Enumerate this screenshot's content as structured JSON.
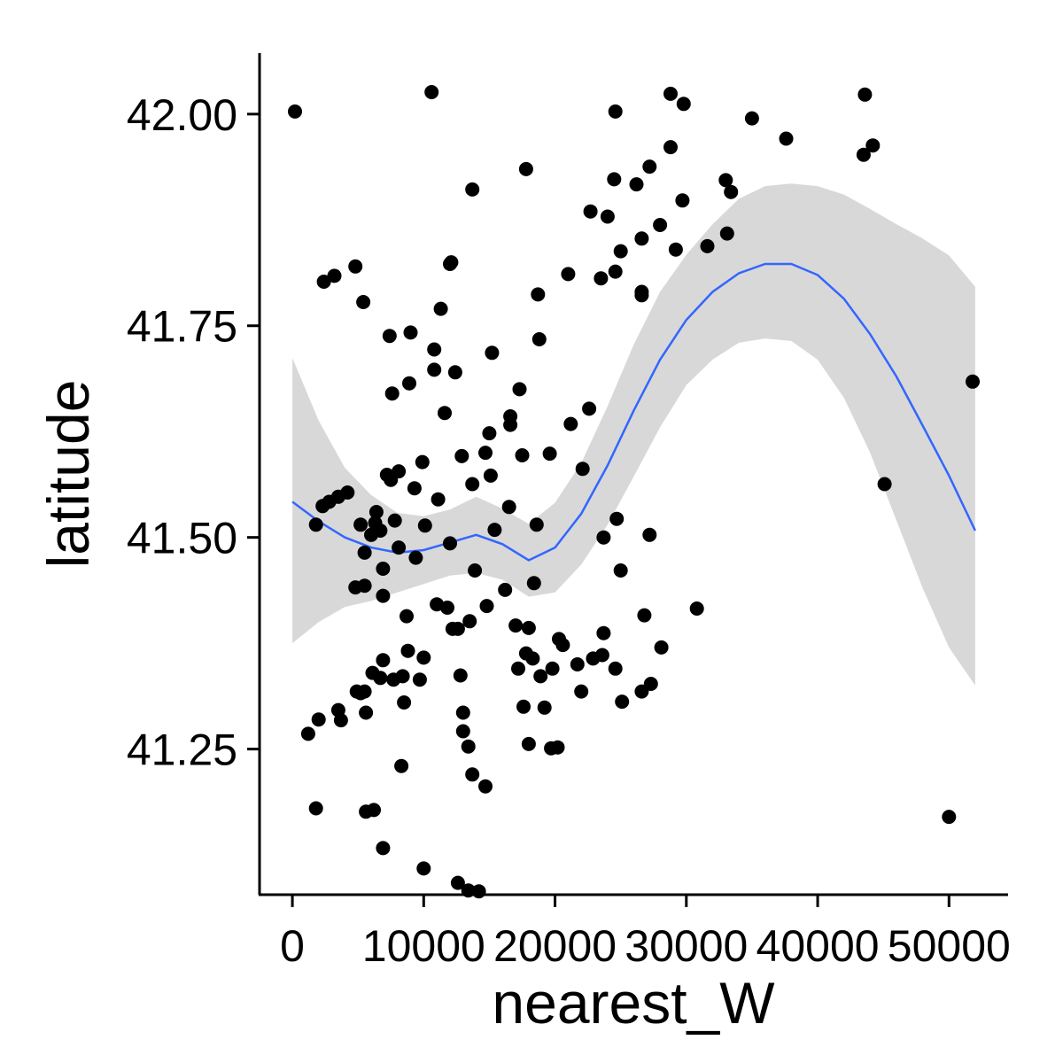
{
  "chart_data": {
    "type": "scatter",
    "title": "",
    "xlabel": "nearest_W",
    "ylabel": "latitude",
    "xlim": [
      -2500,
      54500
    ],
    "ylim": [
      41.078,
      42.072
    ],
    "xticks": [
      0,
      10000,
      20000,
      30000,
      40000,
      50000
    ],
    "xtick_labels": [
      "0",
      "10000",
      "20000",
      "30000",
      "40000",
      "50000"
    ],
    "yticks": [
      41.25,
      41.5,
      41.75,
      42.0
    ],
    "ytick_labels": [
      "41.25",
      "41.50",
      "41.75",
      "42.00"
    ],
    "grid": false,
    "legend": "none",
    "colors": {
      "points": "#000000",
      "smooth": "#3366FF",
      "ci_band": "#D6D6D6"
    },
    "points": [
      [
        200,
        42.003
      ],
      [
        10600,
        42.026
      ],
      [
        24600,
        42.003
      ],
      [
        28800,
        42.024
      ],
      [
        29800,
        42.012
      ],
      [
        43600,
        42.023
      ],
      [
        35000,
        41.995
      ],
      [
        37600,
        41.971
      ],
      [
        44200,
        41.963
      ],
      [
        43500,
        41.952
      ],
      [
        28800,
        41.961
      ],
      [
        17800,
        41.935
      ],
      [
        27200,
        41.938
      ],
      [
        24500,
        41.923
      ],
      [
        26200,
        41.917
      ],
      [
        33000,
        41.922
      ],
      [
        33400,
        41.908
      ],
      [
        13700,
        41.911
      ],
      [
        29700,
        41.898
      ],
      [
        22700,
        41.885
      ],
      [
        24000,
        41.879
      ],
      [
        28000,
        41.869
      ],
      [
        33100,
        41.859
      ],
      [
        26600,
        41.853
      ],
      [
        31600,
        41.844
      ],
      [
        29200,
        41.84
      ],
      [
        25000,
        41.838
      ],
      [
        12100,
        41.825
      ],
      [
        12000,
        41.823
      ],
      [
        4800,
        41.82
      ],
      [
        3200,
        41.809
      ],
      [
        2400,
        41.802
      ],
      [
        21000,
        41.811
      ],
      [
        24600,
        41.814
      ],
      [
        23500,
        41.806
      ],
      [
        18700,
        41.787
      ],
      [
        26600,
        41.79
      ],
      [
        26600,
        41.786
      ],
      [
        5400,
        41.778
      ],
      [
        11300,
        41.77
      ],
      [
        7400,
        41.738
      ],
      [
        9000,
        41.742
      ],
      [
        18800,
        41.734
      ],
      [
        10800,
        41.722
      ],
      [
        15200,
        41.718
      ],
      [
        10800,
        41.698
      ],
      [
        12400,
        41.695
      ],
      [
        8900,
        41.682
      ],
      [
        17300,
        41.675
      ],
      [
        7600,
        41.67
      ],
      [
        11600,
        41.647
      ],
      [
        16600,
        41.643
      ],
      [
        22600,
        41.652
      ],
      [
        21200,
        41.634
      ],
      [
        16600,
        41.633
      ],
      [
        15000,
        41.623
      ],
      [
        14700,
        41.6
      ],
      [
        19600,
        41.599
      ],
      [
        17500,
        41.597
      ],
      [
        12900,
        41.596
      ],
      [
        9900,
        41.589
      ],
      [
        22100,
        41.581
      ],
      [
        8100,
        41.578
      ],
      [
        7200,
        41.574
      ],
      [
        15100,
        41.573
      ],
      [
        7500,
        41.568
      ],
      [
        9300,
        41.558
      ],
      [
        4200,
        41.553
      ],
      [
        3500,
        41.548
      ],
      [
        2800,
        41.542
      ],
      [
        2300,
        41.537
      ],
      [
        13700,
        41.563
      ],
      [
        11100,
        41.545
      ],
      [
        16500,
        41.536
      ],
      [
        6400,
        41.53
      ],
      [
        1800,
        41.515
      ],
      [
        5200,
        41.515
      ],
      [
        6300,
        41.517
      ],
      [
        6700,
        41.508
      ],
      [
        6000,
        41.503
      ],
      [
        7800,
        41.52
      ],
      [
        10100,
        41.514
      ],
      [
        15400,
        41.509
      ],
      [
        18600,
        41.515
      ],
      [
        24700,
        41.522
      ],
      [
        27200,
        41.503
      ],
      [
        23700,
        41.5
      ],
      [
        5500,
        41.482
      ],
      [
        8100,
        41.488
      ],
      [
        9400,
        41.476
      ],
      [
        12000,
        41.493
      ],
      [
        6900,
        41.463
      ],
      [
        13900,
        41.461
      ],
      [
        25000,
        41.461
      ],
      [
        5500,
        41.443
      ],
      [
        4800,
        41.441
      ],
      [
        18400,
        41.446
      ],
      [
        16200,
        41.438
      ],
      [
        6900,
        41.431
      ],
      [
        11000,
        41.421
      ],
      [
        11800,
        41.417
      ],
      [
        14800,
        41.419
      ],
      [
        30800,
        41.416
      ],
      [
        8700,
        41.407
      ],
      [
        26800,
        41.408
      ],
      [
        13500,
        41.401
      ],
      [
        17000,
        41.396
      ],
      [
        12200,
        41.392
      ],
      [
        12600,
        41.392
      ],
      [
        18000,
        41.393
      ],
      [
        23700,
        41.387
      ],
      [
        20300,
        41.38
      ],
      [
        20600,
        41.373
      ],
      [
        28100,
        41.37
      ],
      [
        8800,
        41.366
      ],
      [
        10000,
        41.358
      ],
      [
        17800,
        41.363
      ],
      [
        18300,
        41.357
      ],
      [
        23600,
        41.361
      ],
      [
        22900,
        41.357
      ],
      [
        6900,
        41.355
      ],
      [
        6100,
        41.34
      ],
      [
        17200,
        41.345
      ],
      [
        19800,
        41.345
      ],
      [
        21700,
        41.35
      ],
      [
        24600,
        41.345
      ],
      [
        6700,
        41.334
      ],
      [
        7700,
        41.332
      ],
      [
        9700,
        41.332
      ],
      [
        12800,
        41.337
      ],
      [
        18900,
        41.336
      ],
      [
        8400,
        41.336
      ],
      [
        27300,
        41.327
      ],
      [
        22000,
        41.318
      ],
      [
        26600,
        41.318
      ],
      [
        4900,
        41.318
      ],
      [
        5500,
        41.318
      ],
      [
        5200,
        41.316
      ],
      [
        25100,
        41.306
      ],
      [
        8500,
        41.305
      ],
      [
        17600,
        41.3
      ],
      [
        19200,
        41.299
      ],
      [
        3500,
        41.296
      ],
      [
        5600,
        41.293
      ],
      [
        13000,
        41.293
      ],
      [
        2000,
        41.285
      ],
      [
        3700,
        41.284
      ],
      [
        1200,
        41.268
      ],
      [
        13000,
        41.271
      ],
      [
        13400,
        41.253
      ],
      [
        18000,
        41.256
      ],
      [
        19700,
        41.251
      ],
      [
        20200,
        41.252
      ],
      [
        8300,
        41.23
      ],
      [
        13700,
        41.22
      ],
      [
        14700,
        41.206
      ],
      [
        1800,
        41.18
      ],
      [
        5600,
        41.176
      ],
      [
        6200,
        41.178
      ],
      [
        50000,
        41.17
      ],
      [
        6900,
        41.133
      ],
      [
        10000,
        41.109
      ],
      [
        12600,
        41.092
      ],
      [
        13400,
        41.083
      ],
      [
        14200,
        41.082
      ],
      [
        51800,
        41.684
      ],
      [
        45100,
        41.563
      ]
    ],
    "smooth": {
      "x": [
        0,
        2000,
        4000,
        6000,
        8000,
        10000,
        12000,
        14000,
        16000,
        18000,
        20000,
        22000,
        24000,
        26000,
        28000,
        30000,
        32000,
        34000,
        36000,
        38000,
        40000,
        42000,
        44000,
        46000,
        48000,
        50000,
        52000
      ],
      "y": [
        41.542,
        41.519,
        41.5,
        41.488,
        41.482,
        41.485,
        41.494,
        41.503,
        41.492,
        41.473,
        41.488,
        41.528,
        41.585,
        41.65,
        41.71,
        41.757,
        41.79,
        41.812,
        41.823,
        41.823,
        41.81,
        41.782,
        41.74,
        41.69,
        41.632,
        41.573,
        41.508
      ],
      "lower": [
        41.375,
        41.4,
        41.418,
        41.425,
        41.435,
        41.445,
        41.455,
        41.458,
        41.45,
        41.43,
        41.435,
        41.468,
        41.515,
        41.572,
        41.63,
        41.68,
        41.71,
        41.73,
        41.735,
        41.732,
        41.71,
        41.665,
        41.6,
        41.52,
        41.44,
        41.37,
        41.325
      ],
      "upper": [
        41.712,
        41.638,
        41.582,
        41.55,
        41.529,
        41.525,
        41.533,
        41.548,
        41.534,
        41.516,
        41.541,
        41.588,
        41.655,
        41.728,
        41.79,
        41.834,
        41.87,
        41.9,
        41.915,
        41.918,
        41.915,
        41.905,
        41.888,
        41.87,
        41.853,
        41.833,
        41.796
      ]
    }
  }
}
